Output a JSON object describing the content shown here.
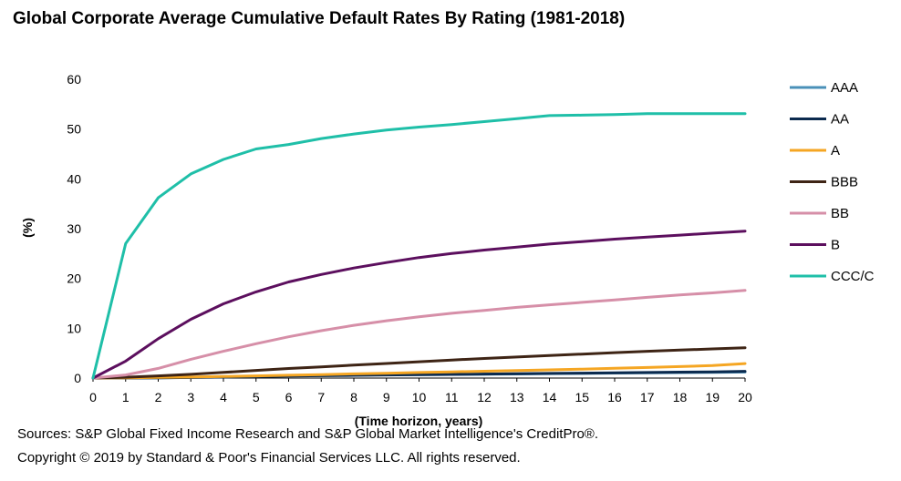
{
  "chart_data": {
    "type": "line",
    "title": "Global Corporate Average Cumulative Default Rates By Rating (1981-2018)",
    "xlabel": "(Time horizon, years)",
    "ylabel": "(%)",
    "x": [
      0,
      1,
      2,
      3,
      4,
      5,
      6,
      7,
      8,
      9,
      10,
      11,
      12,
      13,
      14,
      15,
      16,
      17,
      18,
      19,
      20
    ],
    "xticks": [
      "0",
      "1",
      "2",
      "3",
      "4",
      "5",
      "6",
      "7",
      "8",
      "9",
      "10",
      "11",
      "12",
      "13",
      "14",
      "15",
      "16",
      "17",
      "18",
      "19",
      "20"
    ],
    "yticks": [
      "0",
      "10",
      "20",
      "30",
      "40",
      "50",
      "60"
    ],
    "xlim": [
      0,
      20
    ],
    "ylim": [
      0,
      60
    ],
    "grid": false,
    "legend_position": "right",
    "series": [
      {
        "name": "AAA",
        "color": "#4a90b8",
        "values": [
          0,
          0.0,
          0.03,
          0.13,
          0.24,
          0.35,
          0.45,
          0.51,
          0.59,
          0.65,
          0.7,
          0.74,
          0.78,
          0.83,
          0.89,
          0.94,
          1.0,
          1.05,
          1.1,
          1.15,
          1.2
        ]
      },
      {
        "name": "AA",
        "color": "#0b2a4e",
        "values": [
          0,
          0.02,
          0.06,
          0.11,
          0.2,
          0.31,
          0.41,
          0.48,
          0.55,
          0.62,
          0.68,
          0.74,
          0.8,
          0.86,
          0.93,
          0.99,
          1.05,
          1.11,
          1.18,
          1.25,
          1.35
        ]
      },
      {
        "name": "A",
        "color": "#f5a623",
        "values": [
          0,
          0.05,
          0.13,
          0.21,
          0.32,
          0.43,
          0.56,
          0.7,
          0.84,
          0.97,
          1.12,
          1.25,
          1.37,
          1.5,
          1.65,
          1.8,
          1.96,
          2.12,
          2.3,
          2.5,
          2.9
        ]
      },
      {
        "name": "BBB",
        "color": "#3e2415",
        "values": [
          0,
          0.16,
          0.44,
          0.75,
          1.14,
          1.53,
          1.92,
          2.25,
          2.6,
          2.92,
          3.28,
          3.62,
          3.93,
          4.22,
          4.52,
          4.82,
          5.11,
          5.37,
          5.62,
          5.85,
          6.1
        ]
      },
      {
        "name": "BB",
        "color": "#d68fa8",
        "values": [
          0,
          0.63,
          1.94,
          3.77,
          5.38,
          6.9,
          8.28,
          9.52,
          10.6,
          11.5,
          12.3,
          13.0,
          13.6,
          14.2,
          14.7,
          15.2,
          15.7,
          16.2,
          16.7,
          17.1,
          17.6
        ]
      },
      {
        "name": "B",
        "color": "#5c0f5e",
        "values": [
          0,
          3.4,
          7.9,
          11.8,
          14.9,
          17.3,
          19.3,
          20.8,
          22.1,
          23.2,
          24.2,
          25.0,
          25.7,
          26.3,
          26.9,
          27.4,
          27.9,
          28.3,
          28.7,
          29.1,
          29.5
        ]
      },
      {
        "name": "CCC/C",
        "color": "#1fbfa8",
        "values": [
          0,
          27.0,
          36.2,
          41.0,
          43.9,
          46.0,
          46.9,
          48.1,
          49.0,
          49.8,
          50.4,
          50.9,
          51.5,
          52.1,
          52.7,
          52.8,
          52.9,
          53.1,
          53.1,
          53.1,
          53.1
        ]
      }
    ]
  },
  "footer": {
    "sources": "Sources: S&P Global Fixed Income Research and S&P Global Market Intelligence's CreditPro®.",
    "copyright": "Copyright © 2019 by Standard & Poor's Financial Services LLC. All rights reserved."
  }
}
